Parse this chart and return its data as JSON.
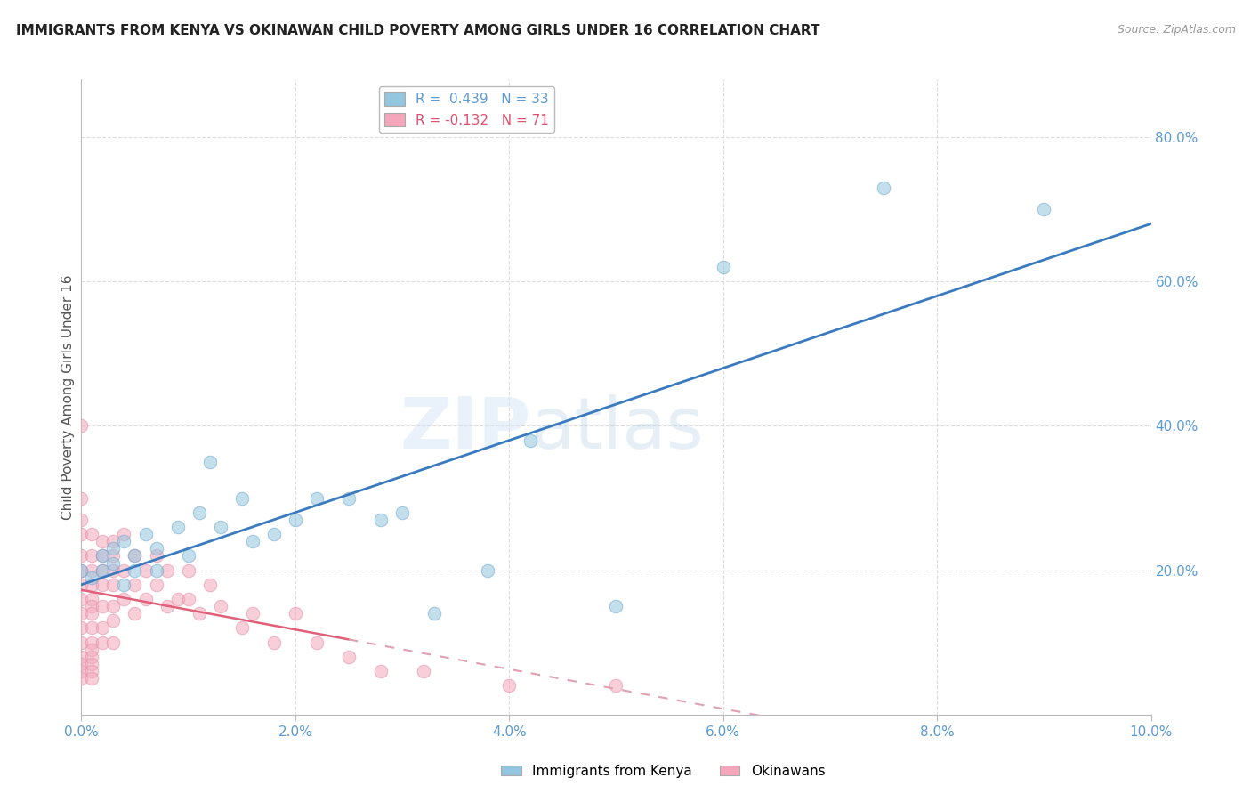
{
  "title": "IMMIGRANTS FROM KENYA VS OKINAWAN CHILD POVERTY AMONG GIRLS UNDER 16 CORRELATION CHART",
  "source": "Source: ZipAtlas.com",
  "ylabel": "Child Poverty Among Girls Under 16",
  "legend_kenya": "Immigrants from Kenya",
  "legend_okinawan": "Okinawans",
  "r_kenya": 0.439,
  "n_kenya": 33,
  "r_okinawan": -0.132,
  "n_okinawan": 71,
  "color_kenya": "#92c5de",
  "color_okinawan": "#f4a6bb",
  "color_title": "#222222",
  "color_axis_blue": "#5b9bd5",
  "xlim": [
    0.0,
    0.1
  ],
  "ylim": [
    0.0,
    0.88
  ],
  "xticks": [
    0.0,
    0.02,
    0.04,
    0.06,
    0.08,
    0.1
  ],
  "xtick_labels": [
    "0.0%",
    "2.0%",
    "4.0%",
    "6.0%",
    "8.0%",
    "10.0%"
  ],
  "yticks": [
    0.0,
    0.2,
    0.4,
    0.6,
    0.8
  ],
  "ytick_labels": [
    "",
    "20.0%",
    "40.0%",
    "60.0%",
    "80.0%"
  ],
  "kenya_points_x": [
    0.0,
    0.001,
    0.002,
    0.002,
    0.003,
    0.003,
    0.004,
    0.004,
    0.005,
    0.005,
    0.006,
    0.007,
    0.007,
    0.009,
    0.01,
    0.011,
    0.012,
    0.013,
    0.015,
    0.016,
    0.018,
    0.02,
    0.022,
    0.025,
    0.028,
    0.03,
    0.033,
    0.038,
    0.042,
    0.05,
    0.06,
    0.075,
    0.09
  ],
  "kenya_points_y": [
    0.2,
    0.19,
    0.2,
    0.22,
    0.21,
    0.23,
    0.18,
    0.24,
    0.22,
    0.2,
    0.25,
    0.23,
    0.2,
    0.26,
    0.22,
    0.28,
    0.35,
    0.26,
    0.3,
    0.24,
    0.25,
    0.27,
    0.3,
    0.3,
    0.27,
    0.28,
    0.14,
    0.2,
    0.38,
    0.15,
    0.62,
    0.73,
    0.7
  ],
  "okinawan_points_x": [
    0.0,
    0.0,
    0.0,
    0.0,
    0.0,
    0.0,
    0.0,
    0.0,
    0.0,
    0.0,
    0.0,
    0.0,
    0.0,
    0.0,
    0.0,
    0.001,
    0.001,
    0.001,
    0.001,
    0.001,
    0.001,
    0.001,
    0.001,
    0.001,
    0.001,
    0.001,
    0.001,
    0.001,
    0.001,
    0.002,
    0.002,
    0.002,
    0.002,
    0.002,
    0.002,
    0.002,
    0.003,
    0.003,
    0.003,
    0.003,
    0.003,
    0.003,
    0.003,
    0.004,
    0.004,
    0.004,
    0.005,
    0.005,
    0.005,
    0.006,
    0.006,
    0.007,
    0.007,
    0.008,
    0.008,
    0.009,
    0.01,
    0.01,
    0.011,
    0.012,
    0.013,
    0.015,
    0.016,
    0.018,
    0.02,
    0.022,
    0.025,
    0.028,
    0.032,
    0.04,
    0.05
  ],
  "okinawan_points_y": [
    0.4,
    0.3,
    0.27,
    0.25,
    0.22,
    0.2,
    0.18,
    0.16,
    0.14,
    0.12,
    0.1,
    0.08,
    0.07,
    0.06,
    0.05,
    0.25,
    0.22,
    0.2,
    0.18,
    0.16,
    0.15,
    0.14,
    0.12,
    0.1,
    0.09,
    0.08,
    0.07,
    0.06,
    0.05,
    0.24,
    0.22,
    0.2,
    0.18,
    0.15,
    0.12,
    0.1,
    0.24,
    0.22,
    0.2,
    0.18,
    0.15,
    0.13,
    0.1,
    0.25,
    0.2,
    0.16,
    0.22,
    0.18,
    0.14,
    0.2,
    0.16,
    0.22,
    0.18,
    0.2,
    0.15,
    0.16,
    0.2,
    0.16,
    0.14,
    0.18,
    0.15,
    0.12,
    0.14,
    0.1,
    0.14,
    0.1,
    0.08,
    0.06,
    0.06,
    0.04,
    0.04
  ],
  "bg_color": "#ffffff",
  "grid_color": "#cccccc",
  "kenya_trend_color": "#3a7bbf",
  "okinawan_trend_solid_color": "#e0607a",
  "okinawan_trend_dash_color": "#e0a0b0"
}
